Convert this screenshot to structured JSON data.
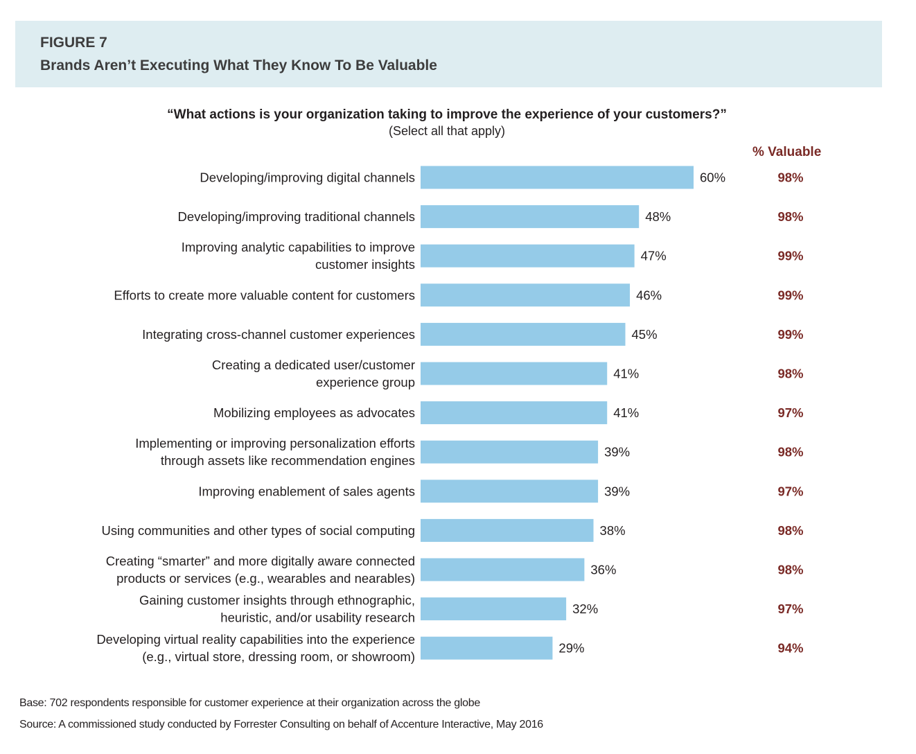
{
  "figure": {
    "label": "FIGURE 7",
    "title": "Brands Aren’t Executing What They Know To Be Valuable"
  },
  "question": "“What actions is your organization taking to improve the experience of your customers?”",
  "instruction": "(Select all that apply)",
  "valuable_header": "% Valuable",
  "colors": {
    "bar": "#95cbe8",
    "valuable_text": "#7a2a26",
    "header_band": "#deedf1"
  },
  "chart_data": {
    "type": "bar",
    "orientation": "horizontal",
    "xlim": [
      0,
      60
    ],
    "grid": false,
    "categories": [
      [
        "Developing/improving digital channels"
      ],
      [
        "Developing/improving traditional channels"
      ],
      [
        "Improving analytic capabilities to improve",
        "customer insights"
      ],
      [
        "Efforts to create more valuable content for customers"
      ],
      [
        "Integrating cross-channel customer experiences"
      ],
      [
        "Creating a dedicated user/customer",
        "experience group"
      ],
      [
        "Mobilizing employees as advocates"
      ],
      [
        "Implementing or improving personalization efforts",
        "through assets like recommendation engines"
      ],
      [
        "Improving enablement of sales agents"
      ],
      [
        "Using communities and other types of social computing"
      ],
      [
        "Creating “smarter” and more digitally aware connected",
        "products or services (e.g., wearables and nearables)"
      ],
      [
        "Gaining customer insights through ethnographic,",
        "heuristic, and/or usability research"
      ],
      [
        "Developing virtual reality capabilities into the experience",
        "(e.g., virtual store, dressing room, or showroom)"
      ]
    ],
    "values": [
      60,
      48,
      47,
      46,
      45,
      41,
      41,
      39,
      39,
      38,
      36,
      32,
      29
    ],
    "value_labels": [
      "60%",
      "48%",
      "47%",
      "46%",
      "45%",
      "41%",
      "41%",
      "39%",
      "39%",
      "38%",
      "36%",
      "32%",
      "29%"
    ],
    "valuable": [
      98,
      98,
      99,
      99,
      99,
      98,
      97,
      98,
      97,
      98,
      98,
      97,
      94
    ],
    "valuable_labels": [
      "98%",
      "98%",
      "99%",
      "99%",
      "99%",
      "98%",
      "97%",
      "98%",
      "97%",
      "98%",
      "98%",
      "97%",
      "94%"
    ]
  },
  "footer": {
    "base": "Base: 702 respondents responsible for customer experience at their organization across the globe",
    "source": "Source: A commissioned study conducted by Forrester Consulting on behalf of Accenture Interactive, May 2016"
  }
}
